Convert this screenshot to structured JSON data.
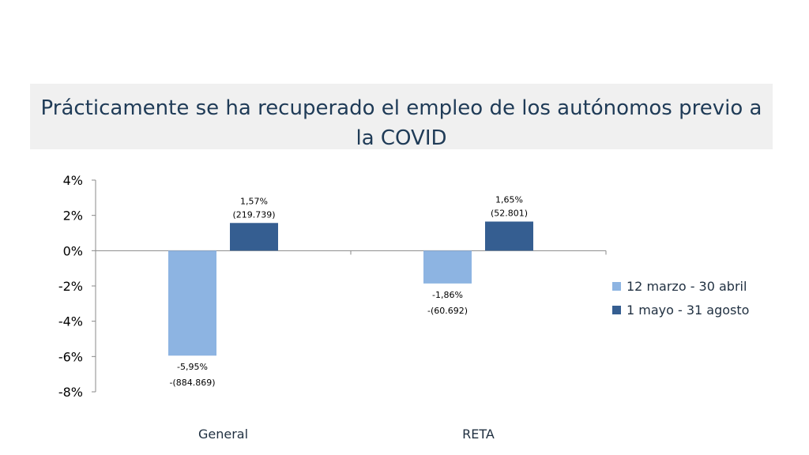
{
  "title": "Prácticamente se ha recuperado el empleo de los autónomos previo a la COVID",
  "colors": {
    "series1": "#8db4e2",
    "series2": "#355e91",
    "axis": "#888888",
    "title_band": "#f0f0f0"
  },
  "chart_data": {
    "type": "bar",
    "title": "Prácticamente se ha recuperado el empleo de los autónomos previo a la COVID",
    "categories": [
      "General",
      "RETA"
    ],
    "ylim": [
      -8,
      4
    ],
    "yticks": [
      4,
      2,
      0,
      -2,
      -4,
      -6,
      -8
    ],
    "ytick_labels": [
      "4%",
      "2%",
      "0%",
      "-2%",
      "-4%",
      "-6%",
      "-8%"
    ],
    "grid": false,
    "legend_position": "right",
    "series": [
      {
        "name": "12 marzo - 30 abril",
        "values": [
          -5.95,
          -1.86
        ],
        "labels_pct": [
          "-5,95%",
          "-1,86%"
        ],
        "labels_abs": [
          "-(884.869)",
          "-(60.692)"
        ]
      },
      {
        "name": "1 mayo - 31 agosto",
        "values": [
          1.57,
          1.65
        ],
        "labels_pct": [
          "1,57%",
          "1,65%"
        ],
        "labels_abs": [
          "(219.739)",
          "(52.801)"
        ]
      }
    ]
  }
}
